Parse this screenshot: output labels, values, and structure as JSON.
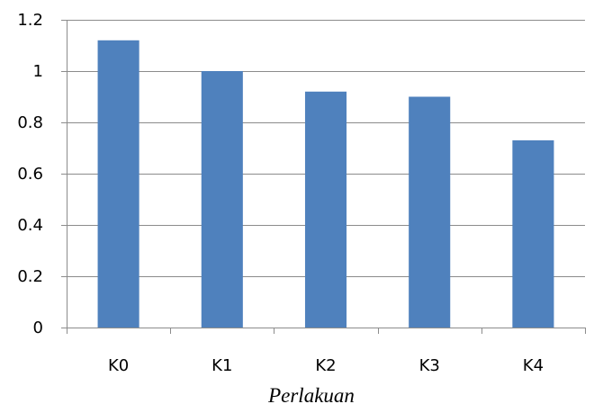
{
  "chart_data": {
    "type": "bar",
    "title": "",
    "xlabel": "Perlakuan",
    "ylabel": "",
    "categories": [
      "K0",
      "K1",
      "K2",
      "K3",
      "K4"
    ],
    "values": [
      1.12,
      1.0,
      0.92,
      0.9,
      0.73
    ],
    "ylim": [
      0,
      1.2
    ],
    "yticks": [
      0,
      0.2,
      0.4,
      0.6,
      0.8,
      1,
      1.2
    ],
    "ytick_labels": [
      "0",
      "0.2",
      "0.4",
      "0.6",
      "0.8",
      "1",
      "1.2"
    ],
    "grid": true,
    "legend": "none",
    "colors": {
      "bar": "#4f81bd",
      "grid": "#8c8c8c",
      "axis": "#8c8c8c"
    }
  }
}
